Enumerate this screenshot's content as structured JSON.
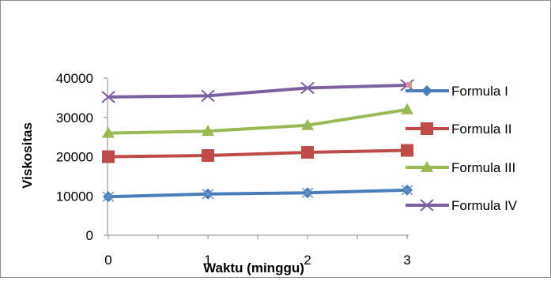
{
  "chart_data": {
    "type": "line",
    "title": "",
    "xlabel": "Waktu (minggu)",
    "ylabel": "Viskositas",
    "x": [
      0,
      1,
      2,
      3
    ],
    "ylim": [
      0,
      40000
    ],
    "yticks": [
      0,
      10000,
      20000,
      30000,
      40000
    ],
    "grid": false,
    "legend_position": "right",
    "series": [
      {
        "name": "Formula I",
        "values": [
          9800,
          10500,
          10800,
          11500
        ],
        "color": "#4a7ebb",
        "marker": "diamond"
      },
      {
        "name": "Formula II",
        "values": [
          20000,
          20300,
          21100,
          21600
        ],
        "color": "#be4b48",
        "marker": "square"
      },
      {
        "name": "Formula III",
        "values": [
          26000,
          26500,
          28000,
          32000
        ],
        "color": "#98b954",
        "marker": "triangle"
      },
      {
        "name": "Formula IV",
        "values": [
          35200,
          35500,
          37500,
          38200
        ],
        "color": "#7d60a0",
        "marker": "x"
      }
    ]
  }
}
